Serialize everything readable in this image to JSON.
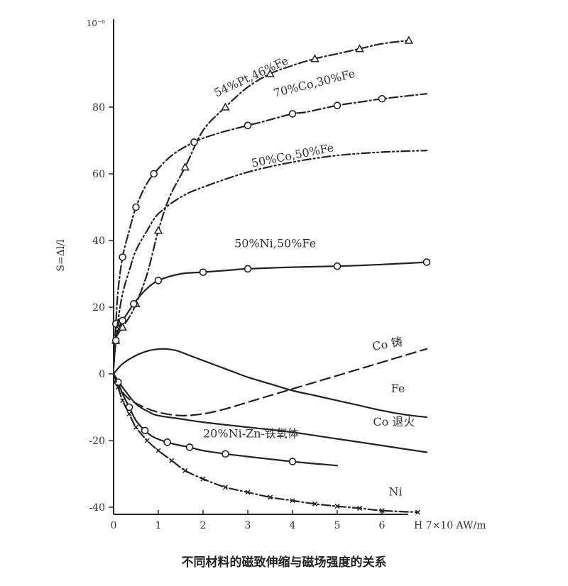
{
  "caption": "不同材料的磁致伸缩与磁场强度的关系",
  "chart_data": {
    "type": "line",
    "title": "",
    "xlabel": "H 7×10 AW/m",
    "ylabel": "S=Δl/l",
    "ylabel_top": "10⁻⁶",
    "xlim": [
      0,
      7
    ],
    "ylim": [
      -40,
      100
    ],
    "xticks": [
      0,
      1,
      2,
      3,
      4,
      5,
      6
    ],
    "yticks": [
      -40,
      -20,
      0,
      20,
      40,
      60,
      80
    ],
    "grid": false,
    "series": [
      {
        "name": "54%Pt,46%Fe",
        "style": "dashdot",
        "marker": "triangle",
        "x": [
          0,
          0.05,
          0.1,
          0.2,
          0.35,
          0.5,
          0.75,
          1.0,
          1.25,
          1.6,
          2.0,
          2.5,
          3.0,
          3.5,
          4.0,
          4.5,
          5.0,
          5.5,
          6.0,
          6.6
        ],
        "y": [
          2,
          10,
          12,
          14,
          17,
          21,
          30,
          43,
          53,
          62,
          73,
          80,
          86,
          90,
          92.5,
          94.5,
          96,
          97.5,
          99,
          100
        ],
        "label_x": 2.3,
        "label_y": 83,
        "label_angle": -25
      },
      {
        "name": "70%Co,30%Fe",
        "style": "dashdot",
        "marker": "circle",
        "x": [
          0,
          0.05,
          0.1,
          0.2,
          0.35,
          0.5,
          0.7,
          0.9,
          1.3,
          1.8,
          2.3,
          3.0,
          3.3,
          4.0,
          4.3,
          5.0,
          5.5,
          6.0,
          7.0
        ],
        "y": [
          2,
          15,
          25,
          35,
          43,
          50,
          56,
          60,
          65.5,
          69.5,
          72,
          74.5,
          75.5,
          78,
          78.5,
          80.5,
          81.5,
          82.5,
          84
        ],
        "label_x": 3.6,
        "label_y": 83,
        "label_angle": -14
      },
      {
        "name": "50%Co,50%Fe",
        "style": "dashdotdot",
        "marker": "none",
        "x": [
          0,
          0.05,
          0.1,
          0.2,
          0.35,
          0.5,
          0.75,
          1.0,
          1.5,
          2.0,
          3.0,
          4.0,
          5.0,
          6.0,
          7.0
        ],
        "y": [
          2,
          10,
          16,
          24,
          31,
          37,
          43,
          48,
          53,
          56,
          60.5,
          63.5,
          65.5,
          66.5,
          67
        ],
        "label_x": 3.1,
        "label_y": 62,
        "label_angle": -11
      },
      {
        "name": "50%Ni,50%Fe",
        "style": "solid",
        "marker": "circle",
        "x": [
          0,
          0.05,
          0.1,
          0.2,
          0.3,
          0.45,
          0.7,
          1.0,
          1.5,
          2.0,
          2.5,
          3.0,
          4.0,
          5.0,
          6.0,
          7.0
        ],
        "y": [
          2,
          10,
          13,
          16,
          18,
          21,
          25,
          28,
          30,
          30.5,
          31,
          31.5,
          32,
          32.3,
          32.8,
          33.5
        ],
        "label_x": 2.7,
        "label_y": 38,
        "label_angle": 0
      },
      {
        "name": "Co 铸",
        "style": "dash",
        "marker": "none",
        "x": [
          0,
          0.3,
          0.6,
          1.0,
          1.5,
          2.0,
          2.5,
          3.0,
          3.5,
          4.0,
          4.5,
          5.0,
          5.5,
          6.0,
          6.5,
          7.0
        ],
        "y": [
          -2,
          -7,
          -9.5,
          -11.5,
          -12.5,
          -12,
          -10.5,
          -8.5,
          -6.5,
          -4.5,
          -2.5,
          -0.5,
          1.5,
          3.5,
          5.5,
          7.5
        ],
        "label_x": 5.8,
        "label_y": 7.0,
        "label_angle": -10
      },
      {
        "name": "Fe",
        "style": "solid",
        "marker": "none",
        "x": [
          0,
          0.2,
          0.5,
          0.8,
          1.1,
          1.4,
          1.8,
          2.2,
          2.6,
          3.0,
          3.5,
          4.0,
          4.5,
          5.0,
          5.5,
          6.0,
          6.5,
          7.0
        ],
        "y": [
          0,
          3,
          5.5,
          7,
          7.5,
          7,
          5,
          3,
          1,
          -1,
          -3,
          -5,
          -6.5,
          -8,
          -9.5,
          -11,
          -12.2,
          -13
        ],
        "label_x": 6.2,
        "label_y": -5.5,
        "label_angle": 0
      },
      {
        "name": "Co 退火",
        "style": "solid",
        "marker": "none",
        "x": [
          0,
          0.2,
          0.5,
          0.8,
          1.0,
          1.5,
          2.0,
          3.0,
          4.0,
          5.0,
          6.0,
          7.0
        ],
        "y": [
          0,
          -4,
          -9,
          -11.5,
          -12.5,
          -13.5,
          -14.5,
          -16,
          -17.5,
          -19.5,
          -21.5,
          -23.5
        ],
        "label_x": 5.8,
        "label_y": -15.5,
        "label_angle": 0
      },
      {
        "name": "20%Ni-Zn-铁氧体",
        "style": "solid",
        "marker": "circle",
        "x": [
          0,
          0.1,
          0.2,
          0.35,
          0.5,
          0.7,
          0.9,
          1.2,
          1.5,
          1.7,
          2.0,
          2.5,
          3.0,
          4.0,
          5.0
        ],
        "y": [
          0,
          -2.5,
          -6,
          -10,
          -14,
          -17,
          -19,
          -20.5,
          -21.5,
          -22,
          -23,
          -24,
          -24.8,
          -26.3,
          -27.5
        ],
        "label_x": 2.0,
        "label_y": -19,
        "label_angle": 0
      },
      {
        "name": "Ni",
        "style": "dashdot",
        "marker": "cross",
        "x": [
          0,
          0.1,
          0.2,
          0.35,
          0.5,
          0.75,
          1.0,
          1.3,
          1.6,
          2.0,
          2.5,
          3.0,
          3.5,
          4.0,
          4.5,
          5.0,
          5.5,
          6.0,
          6.8
        ],
        "y": [
          0,
          -4,
          -8,
          -12,
          -16,
          -20,
          -23,
          -26,
          -29,
          -31.5,
          -34,
          -35.5,
          -37,
          -38,
          -39,
          -39.7,
          -40.3,
          -41,
          -41.5
        ],
        "label_x": 6.15,
        "label_y": -36.5,
        "label_angle": 0
      }
    ]
  }
}
